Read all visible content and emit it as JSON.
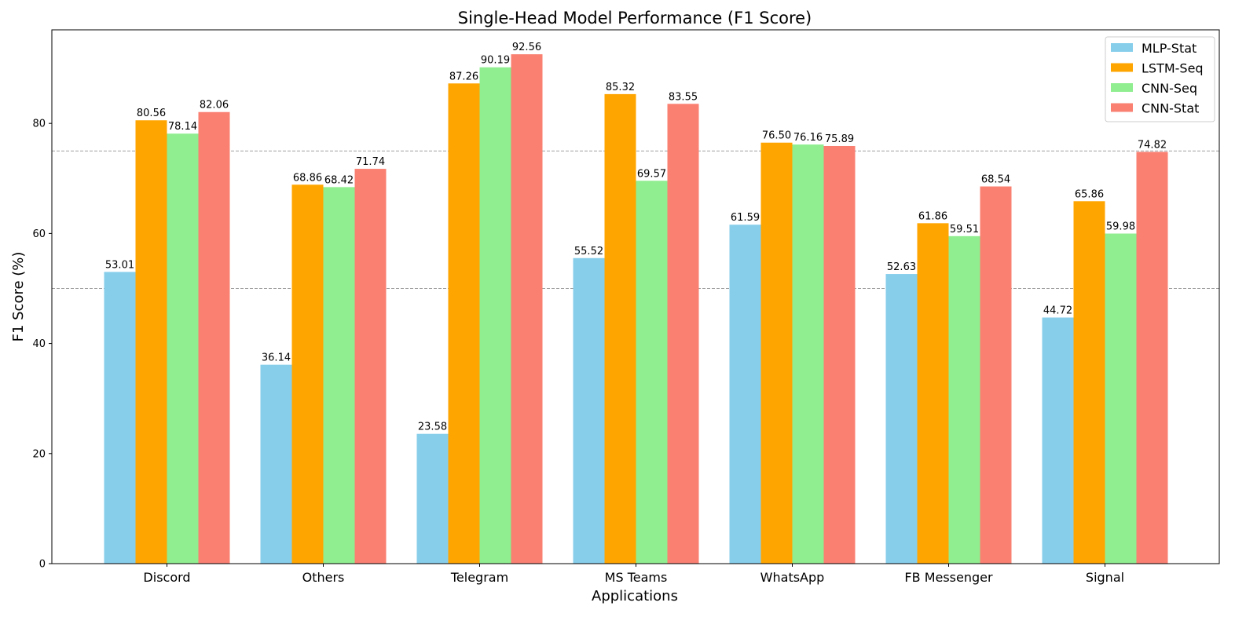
{
  "chart_data": {
    "type": "bar",
    "title": "Single-Head Model Performance (F1 Score)",
    "xlabel": "Applications",
    "ylabel": "F1 Score (%)",
    "ylim": [
      0,
      97
    ],
    "yticks": [
      0,
      20,
      40,
      60,
      80
    ],
    "reference_lines": [
      50,
      75
    ],
    "grid": false,
    "legend_position": "top-right",
    "categories": [
      "Discord",
      "Others",
      "Telegram",
      "MS Teams",
      "WhatsApp",
      "FB Messenger",
      "Signal"
    ],
    "series": [
      {
        "name": "MLP-Stat",
        "color": "#87CEEB",
        "values": [
          53.01,
          36.14,
          23.58,
          55.52,
          61.59,
          52.63,
          44.72
        ]
      },
      {
        "name": "LSTM-Seq",
        "color": "#FFA500",
        "values": [
          80.56,
          68.86,
          87.26,
          85.32,
          76.5,
          61.86,
          65.86
        ]
      },
      {
        "name": "CNN-Seq",
        "color": "#90EE90",
        "values": [
          78.14,
          68.42,
          90.19,
          69.57,
          76.16,
          59.51,
          59.98
        ]
      },
      {
        "name": "CNN-Stat",
        "color": "#FA8072",
        "values": [
          82.06,
          71.74,
          92.56,
          83.55,
          75.89,
          68.54,
          74.82
        ]
      }
    ]
  }
}
